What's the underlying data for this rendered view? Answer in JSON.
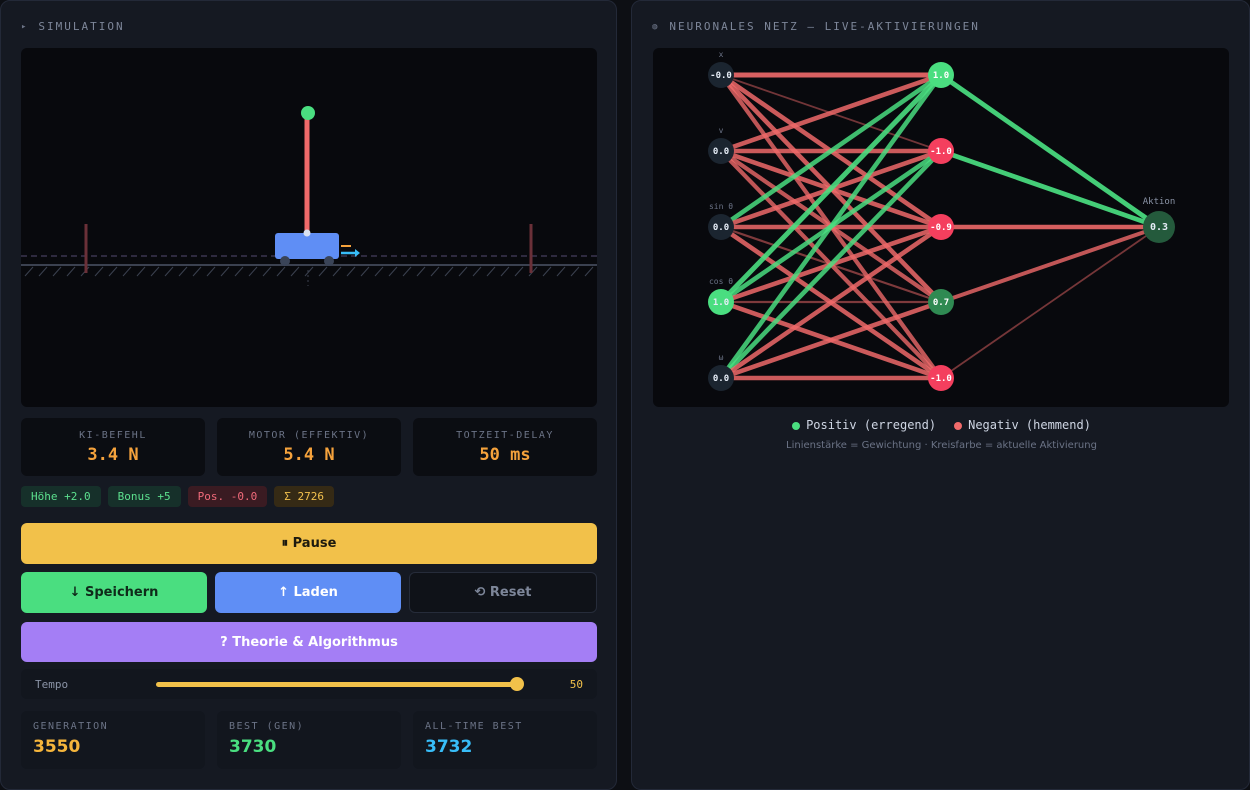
{
  "simulation": {
    "title": "SIMULATION",
    "title_icon": "play-small-icon",
    "cart_color": "#5f8ef5",
    "pole_color": "#f06a6a",
    "pole_tip_color": "#4ade80"
  },
  "stats": [
    {
      "label": "KI-BEFEHL",
      "value": "3.4 N"
    },
    {
      "label": "MOTOR (EFFEKTIV)",
      "value": "5.4 N"
    },
    {
      "label": "TOTZEIT-DELAY",
      "value": "50 ms"
    }
  ],
  "badges": [
    {
      "text": "Höhe +2.0",
      "tone": "green"
    },
    {
      "text": "Bonus +5",
      "tone": "green"
    },
    {
      "text": "Pos. -0.0",
      "tone": "red"
    },
    {
      "text": "Σ 2726",
      "tone": "gold"
    }
  ],
  "controls": {
    "pause": "⏸ Pause",
    "save": "↓ Speichern",
    "load": "↑ Laden",
    "reset": "⟲ Reset",
    "theory": "? Theorie & Algorithmus"
  },
  "tempo": {
    "label": "Tempo",
    "value": "50",
    "fraction": 1.0
  },
  "generation": [
    {
      "label": "GENERATION",
      "value": "3550",
      "color": "#f5b53c"
    },
    {
      "label": "BEST (GEN)",
      "value": "3730",
      "color": "#4ade80"
    },
    {
      "label": "ALL-TIME BEST",
      "value": "3732",
      "color": "#38bdf8"
    }
  ],
  "network": {
    "title": "NEURONALES NETZ – LIVE-AKTIVIERUNGEN",
    "title_icon": "brain-icon",
    "inputs": [
      {
        "label": "x",
        "value": "-0.0"
      },
      {
        "label": "v",
        "value": "0.0"
      },
      {
        "label": "sin θ",
        "value": "0.0"
      },
      {
        "label": "cos θ",
        "value": "1.0"
      },
      {
        "label": "ω",
        "value": "0.0"
      }
    ],
    "hidden": [
      {
        "value": "1.0",
        "activation": 1.0
      },
      {
        "value": "-1.0",
        "activation": -1.0
      },
      {
        "value": "-0.9",
        "activation": -0.9
      },
      {
        "value": "0.7",
        "activation": 0.7
      },
      {
        "value": "-1.0",
        "activation": -1.0
      }
    ],
    "output": {
      "label": "Aktion",
      "value": "0.3"
    },
    "positive_color": "#4ade80",
    "negative_color": "#f06a6a",
    "legend": {
      "positive": "Positiv (erregend)",
      "negative": "Negativ (hemmend)",
      "note": "Linienstärke = Gewichtung · Kreisfarbe = aktuelle Aktivierung"
    }
  }
}
